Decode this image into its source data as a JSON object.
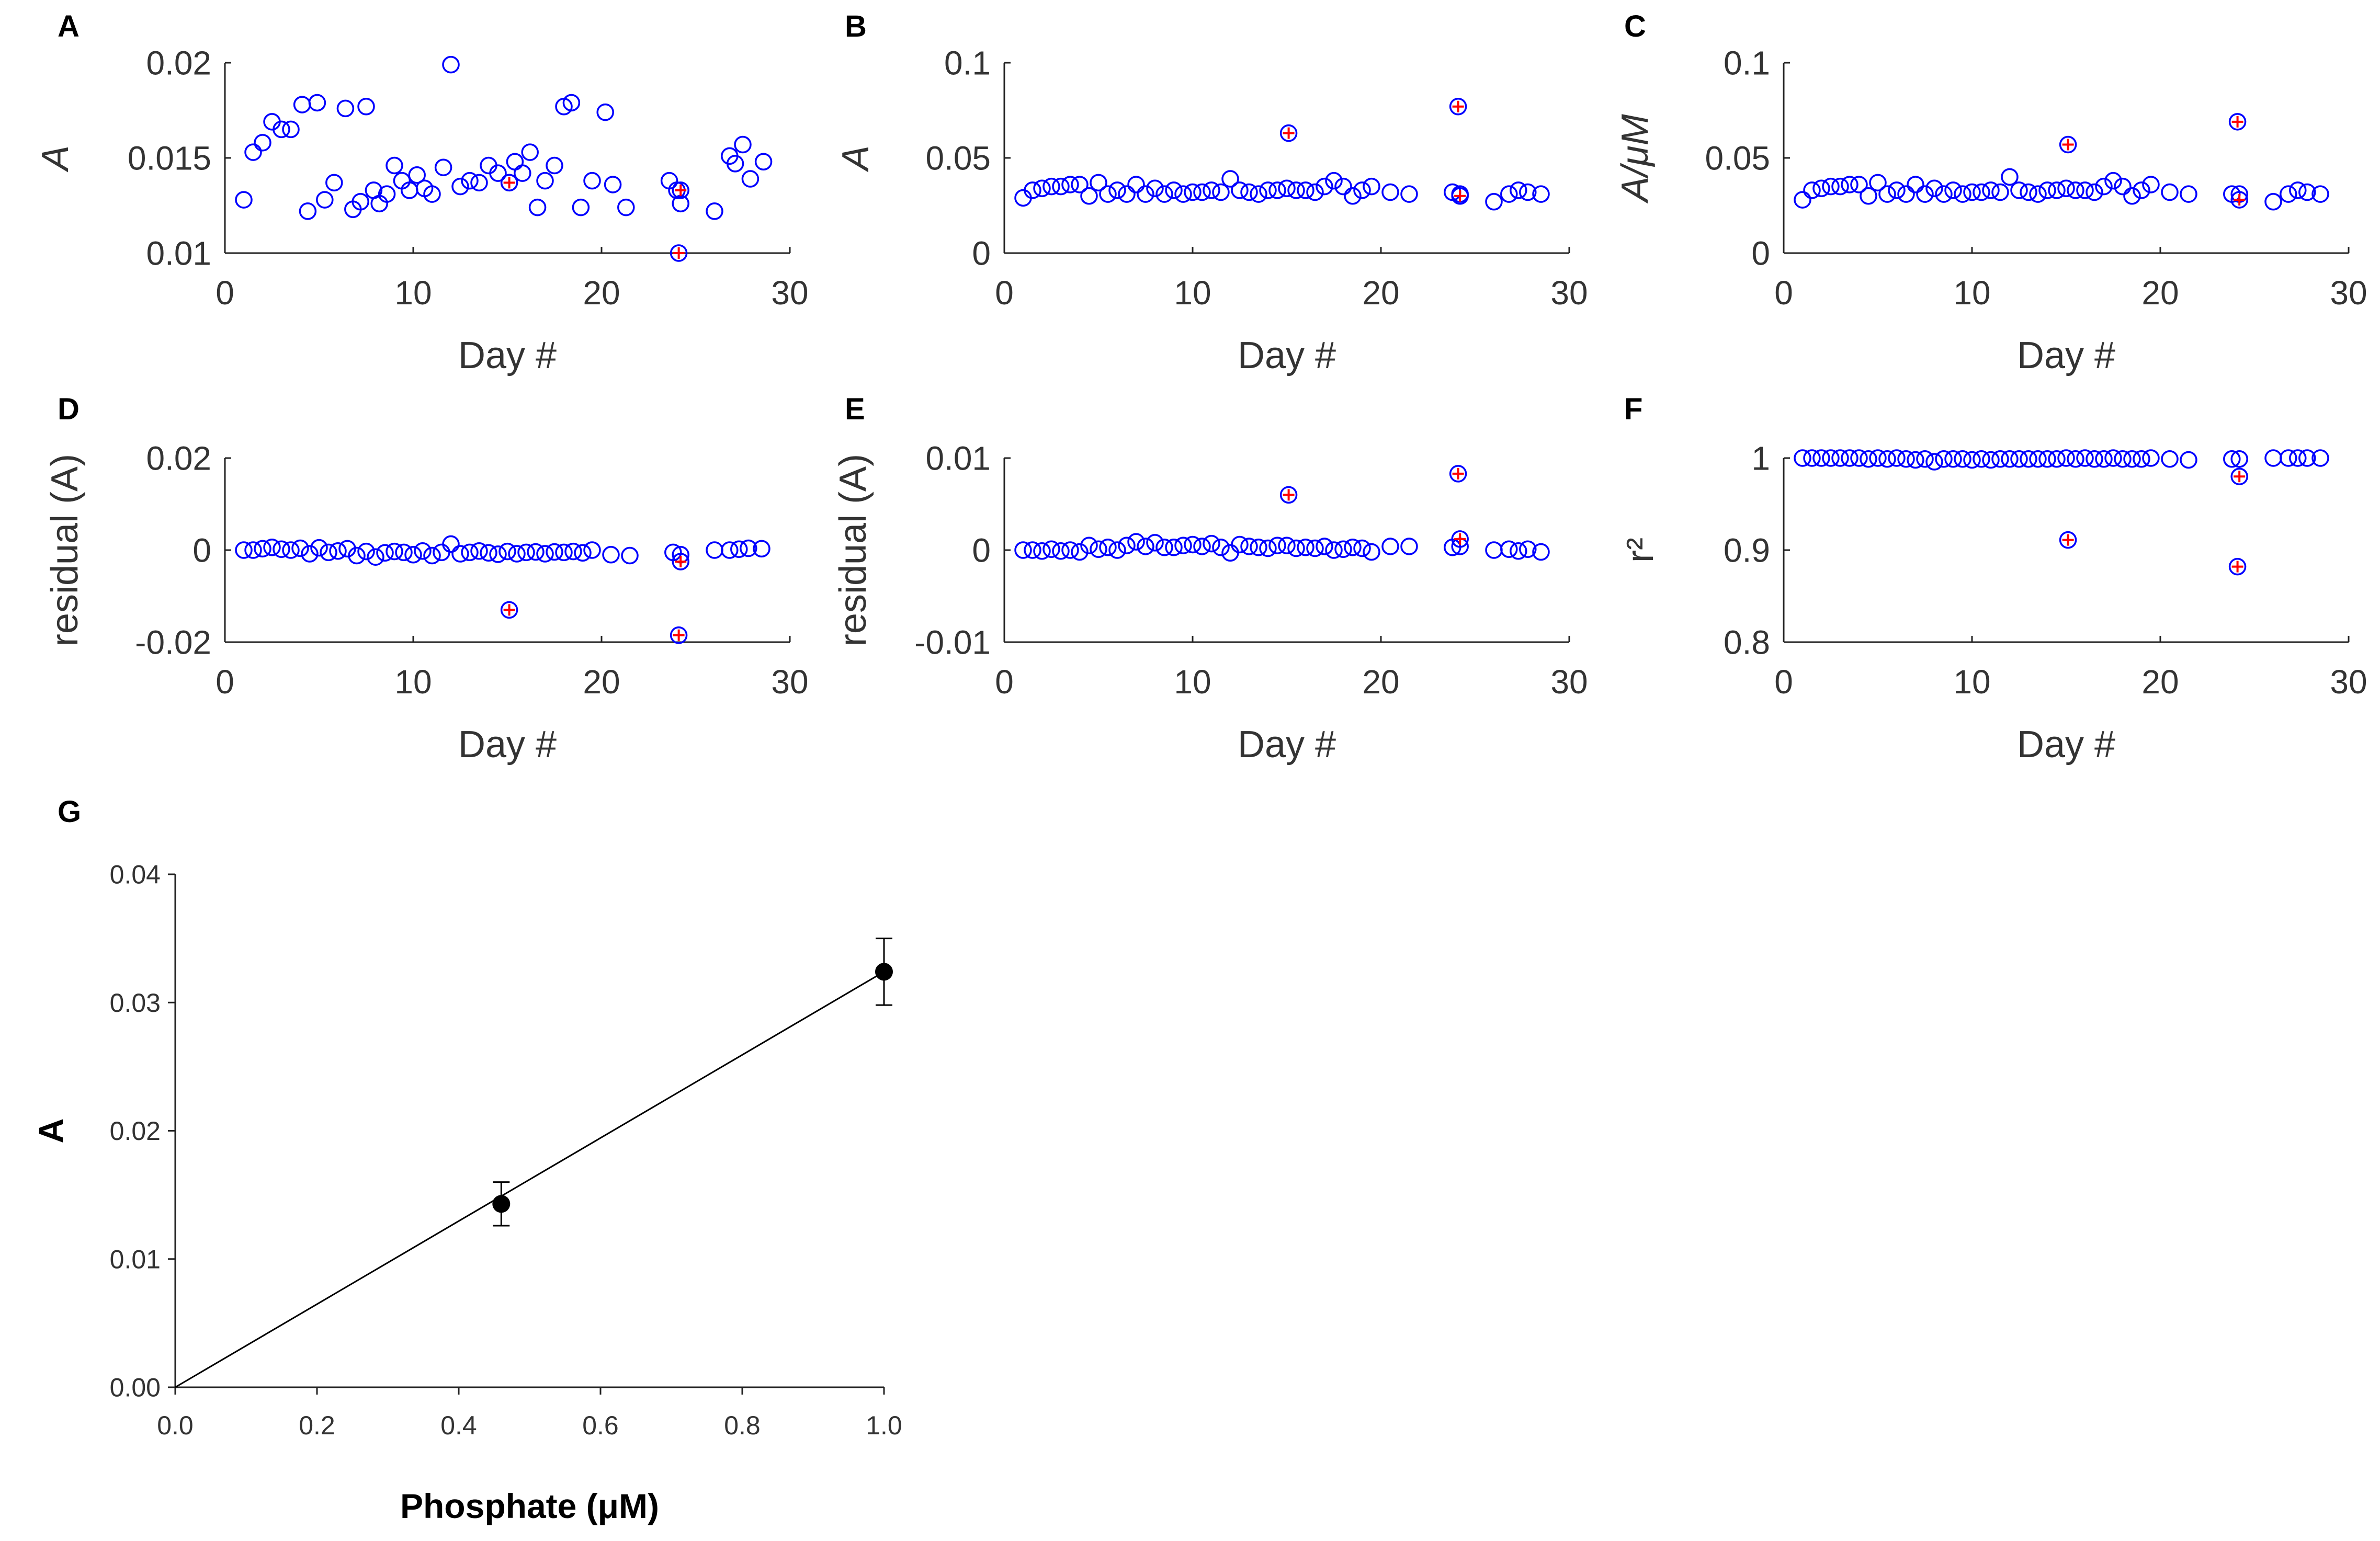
{
  "colors": {
    "marker": "#0000ff",
    "outlier": "#ff0000",
    "axis": "#222222",
    "text": "#333333",
    "fit": "#000000"
  },
  "chart_data": [
    {
      "panel": "A",
      "type": "scatter",
      "ylabel": "A",
      "xlabel": "Day #",
      "xlim": [
        0,
        30
      ],
      "ylim": [
        0.01,
        0.02
      ],
      "xticks": [
        "0",
        "10",
        "20",
        "30"
      ],
      "xtick_values": [
        0,
        10,
        20,
        30
      ],
      "yticks": [
        "0.01",
        "0.015",
        "0.02"
      ],
      "ytick_values": [
        0.01,
        0.015,
        0.02
      ],
      "x": [
        1,
        1.5,
        2,
        2.5,
        3,
        3.5,
        4.1,
        4.4,
        4.9,
        5.3,
        5.8,
        6.4,
        6.8,
        7.2,
        7.5,
        7.9,
        8.2,
        8.6,
        9,
        9.4,
        9.8,
        10.2,
        10.6,
        11,
        11.6,
        12,
        12.5,
        13,
        13.5,
        14,
        14.5,
        15.1,
        15.4,
        15.8,
        16.2,
        16.6,
        17,
        17.5,
        18,
        18.4,
        18.9,
        19.5,
        20.2,
        20.6,
        21.3,
        23.6,
        24,
        24.2,
        26,
        26.8,
        27.1,
        27.5,
        27.9,
        28.6
      ],
      "y": [
        0.0128,
        0.0153,
        0.0158,
        0.0169,
        0.0165,
        0.0165,
        0.0178,
        0.0122,
        0.0179,
        0.0128,
        0.0137,
        0.0176,
        0.0123,
        0.0127,
        0.0177,
        0.0133,
        0.0126,
        0.0131,
        0.0146,
        0.0138,
        0.0133,
        0.0141,
        0.0134,
        0.0131,
        0.0145,
        0.0199,
        0.0135,
        0.0138,
        0.0137,
        0.0146,
        0.0142,
        0.0137,
        0.0148,
        0.0142,
        0.0153,
        0.0124,
        0.0138,
        0.0146,
        0.0177,
        0.0179,
        0.0124,
        0.0138,
        0.0174,
        0.0136,
        0.0124,
        0.0138,
        0.0133,
        0.0126,
        0.0122,
        0.0151,
        0.0147,
        0.0157,
        0.0139,
        0.0148
      ],
      "outliers": {
        "x": [
          15.1,
          24.1,
          24.2
        ],
        "y": [
          0.0137,
          0.01,
          0.0133
        ]
      }
    },
    {
      "panel": "B",
      "type": "scatter",
      "ylabel": "A",
      "xlabel": "Day #",
      "xlim": [
        0,
        30
      ],
      "ylim": [
        0,
        0.1
      ],
      "xticks": [
        "0",
        "10",
        "20",
        "30"
      ],
      "xtick_values": [
        0,
        10,
        20,
        30
      ],
      "yticks": [
        "0",
        "0.05",
        "0.1"
      ],
      "ytick_values": [
        0,
        0.05,
        0.1
      ],
      "x": [
        1,
        1.5,
        2,
        2.5,
        3,
        3.5,
        4,
        4.5,
        5,
        5.5,
        6,
        6.5,
        7,
        7.5,
        8,
        8.5,
        9,
        9.5,
        10,
        10.5,
        11,
        11.5,
        12,
        12.5,
        13,
        13.5,
        14,
        14.5,
        15,
        15.5,
        16,
        16.5,
        17,
        17.5,
        18,
        18.5,
        19,
        19.5,
        20.5,
        21.5,
        23.8,
        24.2,
        26,
        26.8,
        27.3,
        27.8,
        28.5
      ],
      "y": [
        0.029,
        0.033,
        0.034,
        0.035,
        0.035,
        0.036,
        0.036,
        0.03,
        0.037,
        0.031,
        0.033,
        0.031,
        0.036,
        0.031,
        0.034,
        0.031,
        0.033,
        0.031,
        0.032,
        0.032,
        0.033,
        0.032,
        0.039,
        0.033,
        0.032,
        0.031,
        0.033,
        0.033,
        0.034,
        0.033,
        0.033,
        0.032,
        0.035,
        0.038,
        0.035,
        0.03,
        0.033,
        0.035,
        0.032,
        0.031,
        0.032,
        0.031,
        0.027,
        0.031,
        0.033,
        0.032,
        0.031
      ],
      "outliers": {
        "x": [
          15.1,
          24.1,
          24.2
        ],
        "y": [
          0.063,
          0.077,
          0.03
        ]
      }
    },
    {
      "panel": "C",
      "type": "scatter",
      "ylabel": "A/μM",
      "xlabel": "Day #",
      "xlim": [
        0,
        30
      ],
      "ylim": [
        0,
        0.1
      ],
      "xticks": [
        "0",
        "10",
        "20",
        "30"
      ],
      "xtick_values": [
        0,
        10,
        20,
        30
      ],
      "yticks": [
        "0",
        "0.05",
        "0.1"
      ],
      "ytick_values": [
        0,
        0.05,
        0.1
      ],
      "x": [
        1,
        1.5,
        2,
        2.5,
        3,
        3.5,
        4,
        4.5,
        5,
        5.5,
        6,
        6.5,
        7,
        7.5,
        8,
        8.5,
        9,
        9.5,
        10,
        10.5,
        11,
        11.5,
        12,
        12.5,
        13,
        13.5,
        14,
        14.5,
        15,
        15.5,
        16,
        16.5,
        17,
        17.5,
        18,
        18.5,
        19,
        19.5,
        20.5,
        21.5,
        23.8,
        24.2,
        26,
        26.8,
        27.3,
        27.8,
        28.5
      ],
      "y": [
        0.028,
        0.033,
        0.034,
        0.035,
        0.035,
        0.036,
        0.036,
        0.03,
        0.037,
        0.031,
        0.033,
        0.031,
        0.036,
        0.031,
        0.034,
        0.031,
        0.033,
        0.031,
        0.032,
        0.032,
        0.033,
        0.032,
        0.04,
        0.033,
        0.032,
        0.031,
        0.033,
        0.033,
        0.034,
        0.033,
        0.033,
        0.032,
        0.035,
        0.038,
        0.035,
        0.03,
        0.033,
        0.036,
        0.032,
        0.031,
        0.031,
        0.031,
        0.027,
        0.031,
        0.033,
        0.032,
        0.031
      ],
      "outliers": {
        "x": [
          15.1,
          24.1,
          24.2
        ],
        "y": [
          0.057,
          0.069,
          0.028
        ]
      }
    },
    {
      "panel": "D",
      "type": "scatter",
      "ylabel": "residual (A)",
      "xlabel": "Day #",
      "xlim": [
        0,
        30
      ],
      "ylim": [
        -0.02,
        0.02
      ],
      "xticks": [
        "0",
        "10",
        "20",
        "30"
      ],
      "xtick_values": [
        0,
        10,
        20,
        30
      ],
      "yticks": [
        "-0.02",
        "0",
        "0.02"
      ],
      "ytick_values": [
        -0.02,
        0,
        0.02
      ],
      "x": [
        1,
        1.5,
        2,
        2.5,
        3,
        3.5,
        4,
        4.5,
        5,
        5.5,
        6,
        6.5,
        7,
        7.5,
        8,
        8.5,
        9,
        9.5,
        10,
        10.5,
        11,
        11.5,
        12,
        12.5,
        13,
        13.5,
        14,
        14.5,
        15,
        15.5,
        16,
        16.5,
        17,
        17.5,
        18,
        18.5,
        19,
        19.5,
        20.5,
        21.5,
        23.8,
        24.2,
        26,
        26.8,
        27.3,
        27.8,
        28.5
      ],
      "y": [
        0,
        0,
        0.0003,
        0.0006,
        0.0002,
        0,
        0.0004,
        -0.0008,
        0.0005,
        -0.0005,
        -0.0002,
        0.0003,
        -0.0012,
        -0.0003,
        -0.0015,
        -0.0006,
        -0.0003,
        -0.0005,
        -0.001,
        -0.0002,
        -0.0012,
        -0.0005,
        0.0013,
        -0.0008,
        -0.0005,
        -0.0002,
        -0.0006,
        -0.0009,
        -0.0003,
        -0.0008,
        -0.0005,
        -0.0004,
        -0.0008,
        -0.0004,
        -0.0005,
        -0.0003,
        -0.0006,
        0,
        -0.001,
        -0.0012,
        -0.0005,
        -0.001,
        0,
        0,
        0.0002,
        0.0004,
        0.0003
      ],
      "outliers": {
        "x": [
          15.1,
          24.1,
          24.2
        ],
        "y": [
          -0.013,
          -0.0185,
          -0.0025
        ]
      }
    },
    {
      "panel": "E",
      "type": "scatter",
      "ylabel": "residual (A)",
      "xlabel": "Day #",
      "xlim": [
        0,
        30
      ],
      "ylim": [
        -0.01,
        0.01
      ],
      "xticks": [
        "0",
        "10",
        "20",
        "30"
      ],
      "xtick_values": [
        0,
        10,
        20,
        30
      ],
      "yticks": [
        "-0.01",
        "0",
        "0.01"
      ],
      "ytick_values": [
        -0.01,
        0,
        0.01
      ],
      "x": [
        1,
        1.5,
        2,
        2.5,
        3,
        3.5,
        4,
        4.5,
        5,
        5.5,
        6,
        6.5,
        7,
        7.5,
        8,
        8.5,
        9,
        9.5,
        10,
        10.5,
        11,
        11.5,
        12,
        12.5,
        13,
        13.5,
        14,
        14.5,
        15,
        15.5,
        16,
        16.5,
        17,
        17.5,
        18,
        18.5,
        19,
        19.5,
        20.5,
        21.5,
        23.8,
        24.2,
        26,
        26.8,
        27.3,
        27.8,
        28.5
      ],
      "y": [
        0,
        0,
        -0.0001,
        0.0001,
        -0.0001,
        0,
        -0.0002,
        0.0005,
        0.0001,
        0.0003,
        0,
        0.0005,
        0.0009,
        0.0004,
        0.0008,
        0.0003,
        0.0003,
        0.0005,
        0.0006,
        0.0004,
        0.0007,
        0.0003,
        -0.0003,
        0.0006,
        0.0004,
        0.0003,
        0.0002,
        0.0005,
        0.0005,
        0.0002,
        0.0003,
        0.0002,
        0.0004,
        0,
        0.0001,
        0.0003,
        0.0002,
        -0.0002,
        0.0004,
        0.0004,
        0.0003,
        0.0004,
        0,
        0.0001,
        -0.0001,
        0.0001,
        -0.0002
      ],
      "outliers": {
        "x": [
          15.1,
          24.1,
          24.2
        ],
        "y": [
          0.006,
          0.0083,
          0.0012
        ]
      }
    },
    {
      "panel": "F",
      "type": "scatter",
      "ylabel": "r²",
      "xlabel": "Day #",
      "xlim": [
        0,
        30
      ],
      "ylim": [
        0.8,
        1
      ],
      "xticks": [
        "0",
        "10",
        "20",
        "30"
      ],
      "xtick_values": [
        0,
        10,
        20,
        30
      ],
      "yticks": [
        "0.8",
        "0.9",
        "1"
      ],
      "ytick_values": [
        0.8,
        0.9,
        1
      ],
      "x": [
        1,
        1.5,
        2,
        2.5,
        3,
        3.5,
        4,
        4.5,
        5,
        5.5,
        6,
        6.5,
        7,
        7.5,
        8,
        8.5,
        9,
        9.5,
        10,
        10.5,
        11,
        11.5,
        12,
        12.5,
        13,
        13.5,
        14,
        14.5,
        15,
        15.5,
        16,
        16.5,
        17,
        17.5,
        18,
        18.5,
        19,
        19.5,
        20.5,
        21.5,
        23.8,
        24.2,
        26,
        26.8,
        27.3,
        27.8,
        28.5
      ],
      "y": [
        1,
        1,
        1,
        1,
        1,
        1,
        1,
        0.999,
        1,
        0.999,
        1,
        0.999,
        0.998,
        0.999,
        0.996,
        0.999,
        0.999,
        0.999,
        0.998,
        0.999,
        0.998,
        0.999,
        0.999,
        0.999,
        0.999,
        0.999,
        0.999,
        0.999,
        1,
        0.999,
        1,
        0.999,
        0.999,
        1,
        0.999,
        0.999,
        0.999,
        1,
        0.999,
        0.998,
        0.999,
        0.999,
        1,
        1,
        1,
        1,
        1
      ],
      "outliers": {
        "x": [
          15.1,
          24.1,
          24.2
        ],
        "y": [
          0.911,
          0.882,
          0.98
        ]
      }
    },
    {
      "panel": "G",
      "type": "scatter",
      "ylabel": "A",
      "xlabel": "Phosphate (μM)",
      "xlim": [
        0,
        1
      ],
      "ylim": [
        0,
        0.04
      ],
      "xticks": [
        "0.0",
        "0.2",
        "0.4",
        "0.6",
        "0.8",
        "1.0"
      ],
      "xtick_values": [
        0,
        0.2,
        0.4,
        0.6,
        0.8,
        1.0
      ],
      "yticks": [
        "0.00",
        "0.01",
        "0.02",
        "0.03",
        "0.04"
      ],
      "ytick_values": [
        0,
        0.01,
        0.02,
        0.03,
        0.04
      ],
      "points": [
        {
          "x": 0.46,
          "y": 0.0143,
          "err": 0.0017
        },
        {
          "x": 1.0,
          "y": 0.0324,
          "err": 0.0026
        }
      ],
      "fit_line": {
        "x": [
          0,
          1.0
        ],
        "y": [
          0,
          0.0324
        ]
      }
    }
  ]
}
